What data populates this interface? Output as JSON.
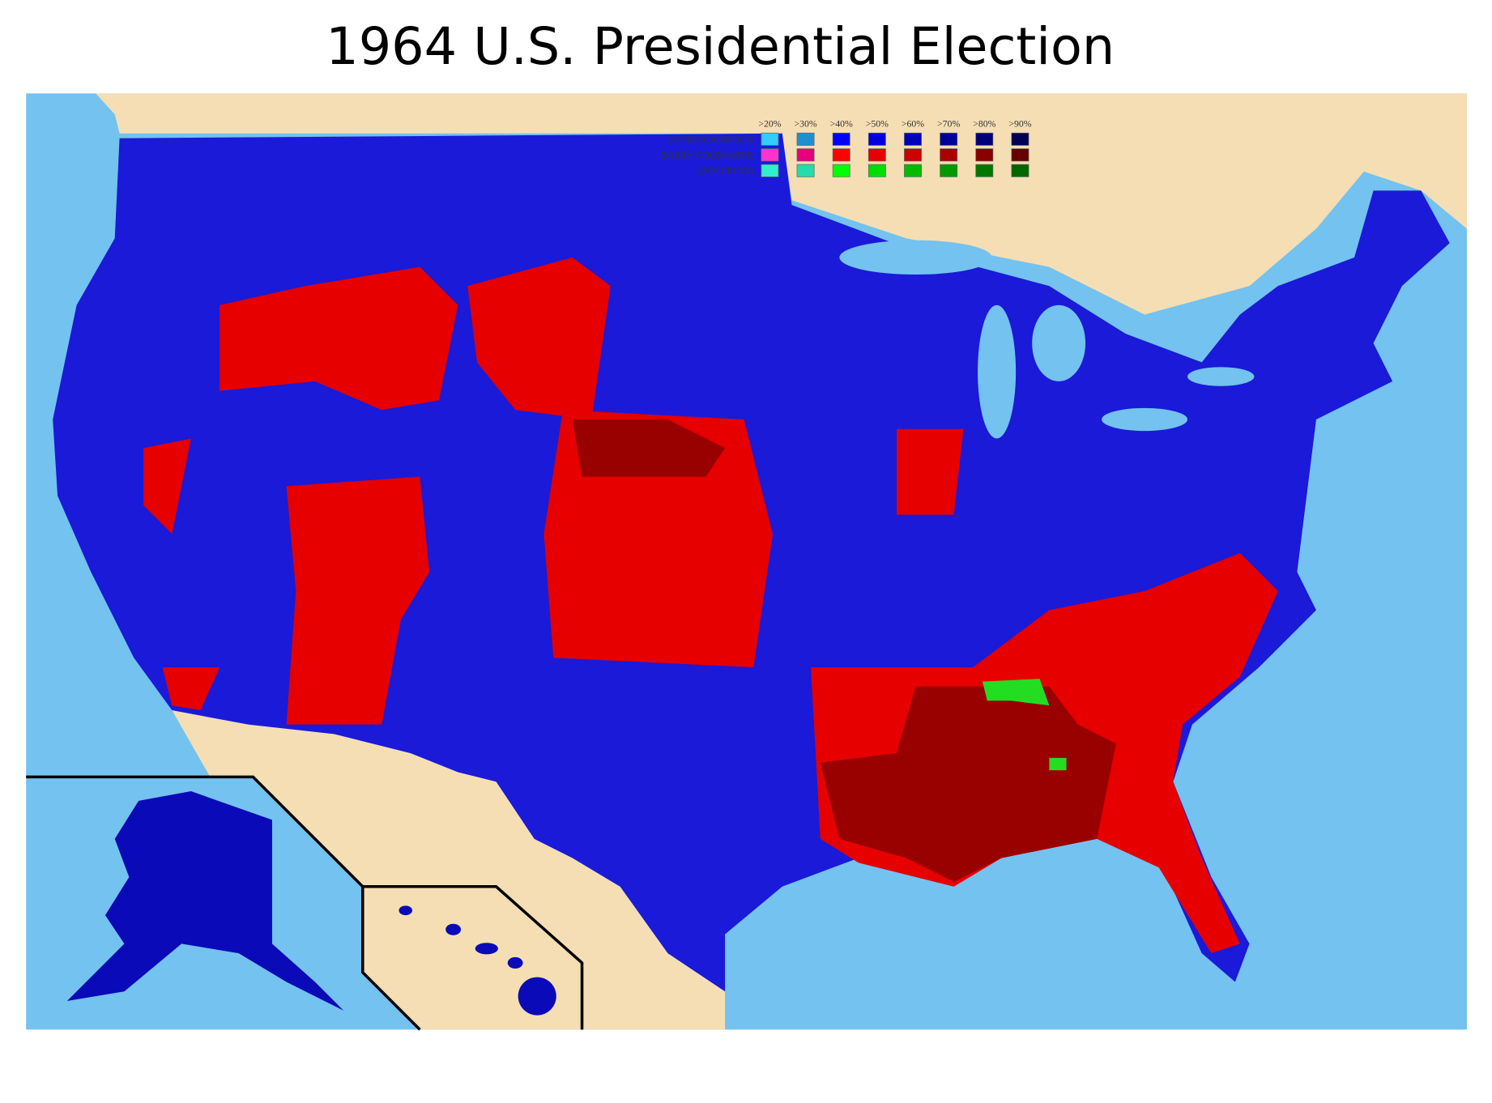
{
  "title": "1964 U.S. Presidential Election",
  "legend": {
    "headers": [
      ">20%",
      ">30%",
      ">40%",
      ">50%",
      ">60%",
      ">70%",
      ">80%",
      ">90%"
    ],
    "rows": [
      {
        "label": "LYNDON JOHNSON",
        "colors": [
          "#33ccff",
          "#1e90d0",
          "#0000ff",
          "#0000dd",
          "#0000bb",
          "#000099",
          "#000077",
          "#000055"
        ]
      },
      {
        "label": "BARRY GOLDWATER",
        "colors": [
          "#ff33cc",
          "#e6007e",
          "#ff0000",
          "#e60000",
          "#cc0000",
          "#aa0000",
          "#880000",
          "#660000"
        ]
      },
      {
        "label": "UNPLEDGED",
        "colors": [
          "#33eecc",
          "#22ddaa",
          "#00ff00",
          "#00dd00",
          "#00bb00",
          "#009900",
          "#007700",
          "#006600"
        ]
      }
    ]
  }
}
